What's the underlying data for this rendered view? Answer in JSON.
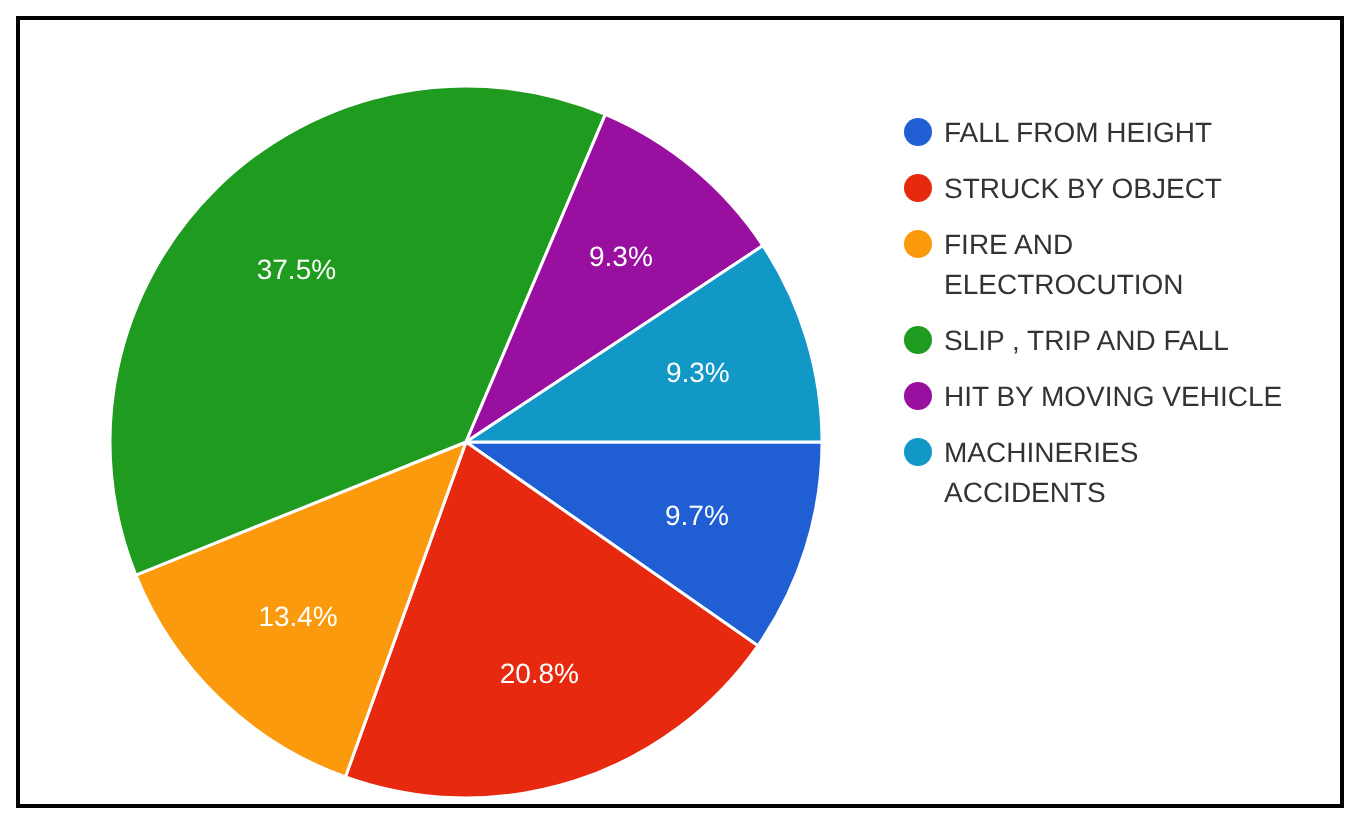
{
  "chart_data": {
    "type": "pie",
    "categories": [
      "FALL FROM HEIGHT",
      "STRUCK BY OBJECT",
      "FIRE AND ELECTROCUTION",
      "SLIP , TRIP AND FALL",
      "HIT BY MOVING VEHICLE",
      "MACHINERIES ACCIDENTS"
    ],
    "values": [
      9.7,
      20.8,
      13.4,
      37.5,
      9.3,
      9.3
    ],
    "value_labels": [
      "9.7%",
      "20.8%",
      "13.4%",
      "37.5%",
      "9.3%",
      "9.3%"
    ],
    "colors": [
      "#1f5fd3",
      "#e6290f",
      "#fa9a0c",
      "#1f9b20",
      "#990f9f",
      "#1298c6"
    ],
    "legend": "right"
  }
}
